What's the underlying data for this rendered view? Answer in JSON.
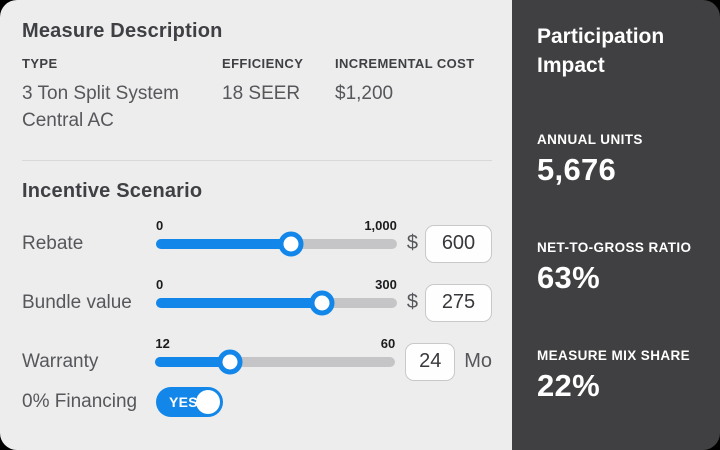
{
  "left_panel": {
    "measure_description": {
      "title": "Measure Description",
      "columns": [
        {
          "label": "TYPE",
          "value": "3 Ton Split System Central AC"
        },
        {
          "label": "EFFICIENCY",
          "value": "18 SEER"
        },
        {
          "label": "INCREMENTAL COST",
          "value": "$1,200"
        }
      ]
    },
    "incentive_scenario": {
      "title": "Incentive Scenario",
      "sliders": [
        {
          "label": "Rebate",
          "min_label": "0",
          "max_label": "1,000",
          "value": "600",
          "prefix": "$",
          "percent": 56
        },
        {
          "label": "Bundle value",
          "min_label": "0",
          "max_label": "300",
          "value": "275",
          "prefix": "$",
          "percent": 69
        },
        {
          "label": "Warranty",
          "min_label": "12",
          "max_label": "60",
          "value": "24",
          "suffix": "Mo",
          "percent": 31
        }
      ],
      "toggle": {
        "label": "0% Financing",
        "state": "YES",
        "on": true
      }
    }
  },
  "right_panel": {
    "title": "Participation Impact",
    "stats": [
      {
        "label": "ANNUAL UNITS",
        "value": "5,676"
      },
      {
        "label": "NET-TO-GROSS RATIO",
        "value": "63%"
      },
      {
        "label": "MEASURE MIX SHARE",
        "value": "22%"
      }
    ]
  },
  "colors": {
    "accent_blue": "#1287E9",
    "panel_light": "#EDEDED",
    "panel_dark": "#404042",
    "track_gray": "#C5C5C7"
  }
}
